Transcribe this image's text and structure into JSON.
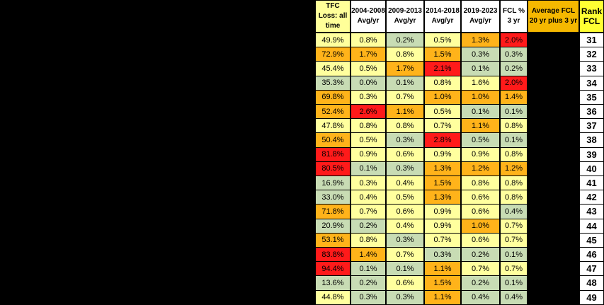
{
  "columns": [
    {
      "key": "tfc",
      "label": "TFC Loss: all time",
      "bg": "#ffff99"
    },
    {
      "key": "p1",
      "label": "2004-2008 Avg/yr",
      "bg": "#ffffff"
    },
    {
      "key": "p2",
      "label": "2009-2013 Avg/yr",
      "bg": "#ffffff"
    },
    {
      "key": "p3",
      "label": "2014-2018 Avg/yr",
      "bg": "#ffffff"
    },
    {
      "key": "p4",
      "label": "2019-2023 Avg/yr",
      "bg": "#ffffff"
    },
    {
      "key": "fcl3",
      "label": "FCL % 3 yr",
      "bg": "#ffffff"
    },
    {
      "key": "avg",
      "label": "Average FCL 20 yr plus 3 yr",
      "bg": "#f5b800"
    },
    {
      "key": "rank",
      "label": "Rank FCL",
      "bg": "#ffff33"
    }
  ],
  "colors": {
    "red": "#ff1a1a",
    "orange": "#ffb31a",
    "yellow": "#ffff9e",
    "green": "#c8dcb4"
  },
  "rows": [
    {
      "rank": "31",
      "tfc": [
        "49.9%",
        "yellow"
      ],
      "p1": [
        "0.8%",
        "yellow"
      ],
      "p2": [
        "0.2%",
        "green"
      ],
      "p3": [
        "0.5%",
        "yellow"
      ],
      "p4": [
        "1.3%",
        "orange"
      ],
      "fcl3": [
        "2.0%",
        "red"
      ]
    },
    {
      "rank": "32",
      "tfc": [
        "72.9%",
        "orange"
      ],
      "p1": [
        "1.7%",
        "orange"
      ],
      "p2": [
        "0.8%",
        "yellow"
      ],
      "p3": [
        "1.5%",
        "orange"
      ],
      "p4": [
        "0.3%",
        "green"
      ],
      "fcl3": [
        "0.3%",
        "green"
      ]
    },
    {
      "rank": "33",
      "tfc": [
        "45.4%",
        "yellow"
      ],
      "p1": [
        "0.5%",
        "yellow"
      ],
      "p2": [
        "1.7%",
        "orange"
      ],
      "p3": [
        "2.1%",
        "red"
      ],
      "p4": [
        "0.1%",
        "green"
      ],
      "fcl3": [
        "0.2%",
        "green"
      ]
    },
    {
      "rank": "34",
      "tfc": [
        "35.3%",
        "green"
      ],
      "p1": [
        "0.0%",
        "green"
      ],
      "p2": [
        "0.1%",
        "green"
      ],
      "p3": [
        "0.8%",
        "yellow"
      ],
      "p4": [
        "1.6%",
        "yellow"
      ],
      "fcl3": [
        "2.0%",
        "red"
      ]
    },
    {
      "rank": "35",
      "tfc": [
        "69.8%",
        "orange"
      ],
      "p1": [
        "0.3%",
        "yellow"
      ],
      "p2": [
        "0.7%",
        "yellow"
      ],
      "p3": [
        "1.0%",
        "orange"
      ],
      "p4": [
        "1.0%",
        "orange"
      ],
      "fcl3": [
        "1.4%",
        "orange"
      ]
    },
    {
      "rank": "36",
      "tfc": [
        "52.4%",
        "orange"
      ],
      "p1": [
        "2.6%",
        "red"
      ],
      "p2": [
        "1.1%",
        "orange"
      ],
      "p3": [
        "0.5%",
        "yellow"
      ],
      "p4": [
        "0.1%",
        "green"
      ],
      "fcl3": [
        "0.1%",
        "green"
      ]
    },
    {
      "rank": "37",
      "tfc": [
        "47.8%",
        "yellow"
      ],
      "p1": [
        "0.8%",
        "yellow"
      ],
      "p2": [
        "0.8%",
        "yellow"
      ],
      "p3": [
        "0.7%",
        "yellow"
      ],
      "p4": [
        "1.1%",
        "orange"
      ],
      "fcl3": [
        "0.8%",
        "yellow"
      ]
    },
    {
      "rank": "38",
      "tfc": [
        "50.4%",
        "orange"
      ],
      "p1": [
        "0.5%",
        "yellow"
      ],
      "p2": [
        "0.3%",
        "green"
      ],
      "p3": [
        "2.8%",
        "red"
      ],
      "p4": [
        "0.5%",
        "green"
      ],
      "fcl3": [
        "0.1%",
        "green"
      ]
    },
    {
      "rank": "39",
      "tfc": [
        "81.8%",
        "red"
      ],
      "p1": [
        "0.9%",
        "yellow"
      ],
      "p2": [
        "0.6%",
        "yellow"
      ],
      "p3": [
        "0.9%",
        "yellow"
      ],
      "p4": [
        "0.9%",
        "yellow"
      ],
      "fcl3": [
        "0.8%",
        "yellow"
      ]
    },
    {
      "rank": "40",
      "tfc": [
        "80.5%",
        "red"
      ],
      "p1": [
        "0.1%",
        "green"
      ],
      "p2": [
        "0.3%",
        "green"
      ],
      "p3": [
        "1.3%",
        "orange"
      ],
      "p4": [
        "1.2%",
        "orange"
      ],
      "fcl3": [
        "1.2%",
        "orange"
      ]
    },
    {
      "rank": "41",
      "tfc": [
        "16.9%",
        "green"
      ],
      "p1": [
        "0.3%",
        "yellow"
      ],
      "p2": [
        "0.4%",
        "yellow"
      ],
      "p3": [
        "1.5%",
        "orange"
      ],
      "p4": [
        "0.8%",
        "yellow"
      ],
      "fcl3": [
        "0.8%",
        "yellow"
      ]
    },
    {
      "rank": "42",
      "tfc": [
        "33.0%",
        "green"
      ],
      "p1": [
        "0.4%",
        "yellow"
      ],
      "p2": [
        "0.5%",
        "yellow"
      ],
      "p3": [
        "1.3%",
        "orange"
      ],
      "p4": [
        "0.6%",
        "yellow"
      ],
      "fcl3": [
        "0.8%",
        "yellow"
      ]
    },
    {
      "rank": "43",
      "tfc": [
        "71.8%",
        "orange"
      ],
      "p1": [
        "0.7%",
        "yellow"
      ],
      "p2": [
        "0.6%",
        "yellow"
      ],
      "p3": [
        "0.9%",
        "yellow"
      ],
      "p4": [
        "0.6%",
        "yellow"
      ],
      "fcl3": [
        "0.4%",
        "green"
      ]
    },
    {
      "rank": "44",
      "tfc": [
        "20.9%",
        "green"
      ],
      "p1": [
        "0.2%",
        "green"
      ],
      "p2": [
        "0.4%",
        "yellow"
      ],
      "p3": [
        "0.9%",
        "yellow"
      ],
      "p4": [
        "1.0%",
        "orange"
      ],
      "fcl3": [
        "0.7%",
        "yellow"
      ]
    },
    {
      "rank": "45",
      "tfc": [
        "53.1%",
        "orange"
      ],
      "p1": [
        "0.8%",
        "yellow"
      ],
      "p2": [
        "0.3%",
        "green"
      ],
      "p3": [
        "0.7%",
        "yellow"
      ],
      "p4": [
        "0.6%",
        "yellow"
      ],
      "fcl3": [
        "0.7%",
        "yellow"
      ]
    },
    {
      "rank": "46",
      "tfc": [
        "83.8%",
        "red"
      ],
      "p1": [
        "1.4%",
        "orange"
      ],
      "p2": [
        "0.7%",
        "yellow"
      ],
      "p3": [
        "0.3%",
        "green"
      ],
      "p4": [
        "0.2%",
        "green"
      ],
      "fcl3": [
        "0.1%",
        "green"
      ]
    },
    {
      "rank": "47",
      "tfc": [
        "94.4%",
        "red"
      ],
      "p1": [
        "0.1%",
        "green"
      ],
      "p2": [
        "0.1%",
        "green"
      ],
      "p3": [
        "1.1%",
        "orange"
      ],
      "p4": [
        "0.7%",
        "yellow"
      ],
      "fcl3": [
        "0.7%",
        "yellow"
      ]
    },
    {
      "rank": "48",
      "tfc": [
        "13.6%",
        "green"
      ],
      "p1": [
        "0.2%",
        "green"
      ],
      "p2": [
        "0.6%",
        "yellow"
      ],
      "p3": [
        "1.5%",
        "orange"
      ],
      "p4": [
        "0.2%",
        "green"
      ],
      "fcl3": [
        "0.1%",
        "green"
      ]
    },
    {
      "rank": "49",
      "tfc": [
        "44.8%",
        "yellow"
      ],
      "p1": [
        "0.3%",
        "green"
      ],
      "p2": [
        "0.3%",
        "green"
      ],
      "p3": [
        "1.1%",
        "orange"
      ],
      "p4": [
        "0.4%",
        "green"
      ],
      "fcl3": [
        "0.4%",
        "green"
      ]
    }
  ]
}
